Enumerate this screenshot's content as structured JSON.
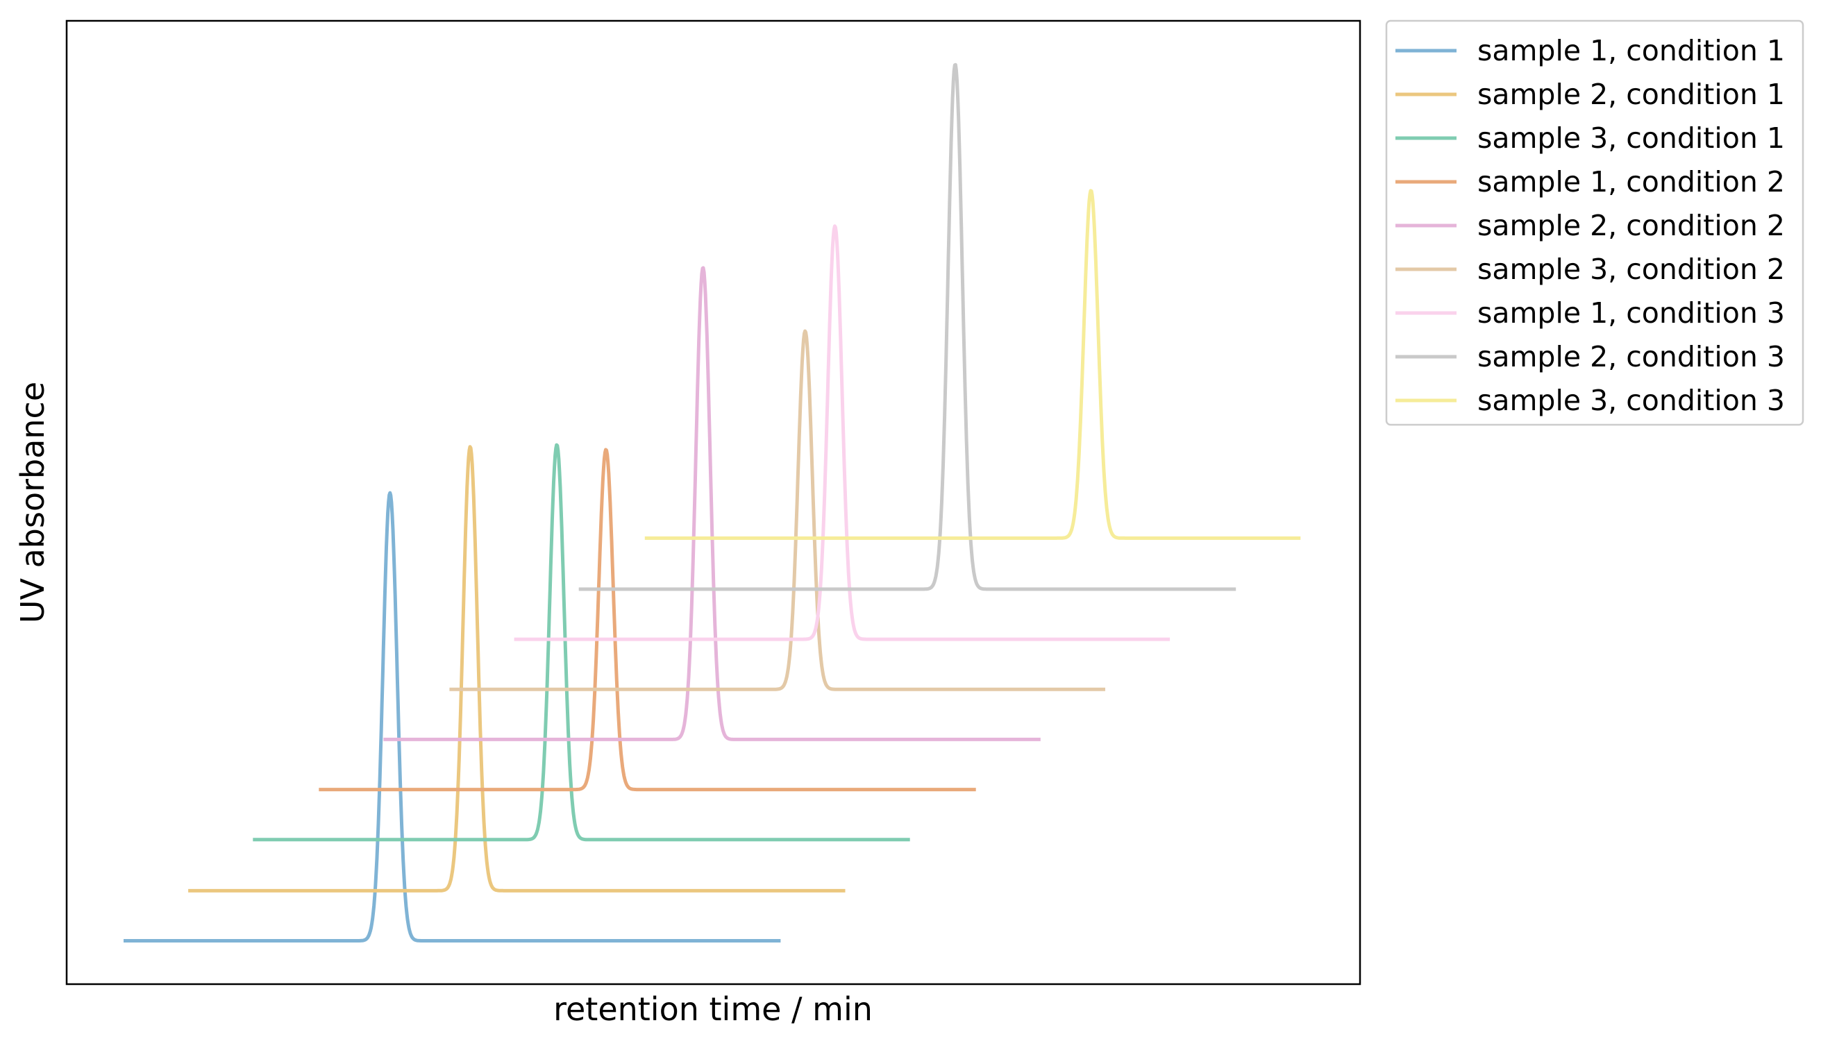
{
  "chart_data": {
    "type": "line",
    "title": "",
    "xlabel": "retention time / min",
    "ylabel": "UV absorbance",
    "x_ticks_shown": false,
    "y_ticks_shown": false,
    "grid": false,
    "legend_position": "outside-right-top",
    "series": [
      {
        "name": "sample 1, condition 1",
        "color": "#7fb3d5",
        "baseline": 0.045,
        "x_start": 0.044,
        "x_end": 0.552,
        "peak_x": 0.25,
        "peak_height": 0.465,
        "peak_width": 0.0055
      },
      {
        "name": "sample 2, condition 1",
        "color": "#ebc77f",
        "baseline": 0.097,
        "x_start": 0.094,
        "x_end": 0.602,
        "peak_x": 0.312,
        "peak_height": 0.461,
        "peak_width": 0.0055
      },
      {
        "name": "sample 3, condition 1",
        "color": "#7fccb1",
        "baseline": 0.15,
        "x_start": 0.144,
        "x_end": 0.652,
        "peak_x": 0.379,
        "peak_height": 0.41,
        "peak_width": 0.0055
      },
      {
        "name": "sample 1, condition 2",
        "color": "#e9a97a",
        "baseline": 0.202,
        "x_start": 0.195,
        "x_end": 0.703,
        "peak_x": 0.417,
        "peak_height": 0.353,
        "peak_width": 0.0055
      },
      {
        "name": "sample 2, condition 2",
        "color": "#e5b4d9",
        "baseline": 0.254,
        "x_start": 0.245,
        "x_end": 0.753,
        "peak_x": 0.492,
        "peak_height": 0.49,
        "peak_width": 0.0055
      },
      {
        "name": "sample 3, condition 2",
        "color": "#e3c9a7",
        "baseline": 0.306,
        "x_start": 0.296,
        "x_end": 0.803,
        "peak_x": 0.571,
        "peak_height": 0.372,
        "peak_width": 0.0055
      },
      {
        "name": "sample 1, condition 3",
        "color": "#fad2ec",
        "baseline": 0.358,
        "x_start": 0.346,
        "x_end": 0.853,
        "peak_x": 0.594,
        "peak_height": 0.429,
        "peak_width": 0.0055
      },
      {
        "name": "sample 2, condition 3",
        "color": "#c9c9c9",
        "baseline": 0.41,
        "x_start": 0.396,
        "x_end": 0.904,
        "peak_x": 0.687,
        "peak_height": 0.545,
        "peak_width": 0.0055
      },
      {
        "name": "sample 3, condition 3",
        "color": "#f6ec99",
        "baseline": 0.463,
        "x_start": 0.447,
        "x_end": 0.954,
        "peak_x": 0.792,
        "peak_height": 0.361,
        "peak_width": 0.0055
      }
    ]
  }
}
